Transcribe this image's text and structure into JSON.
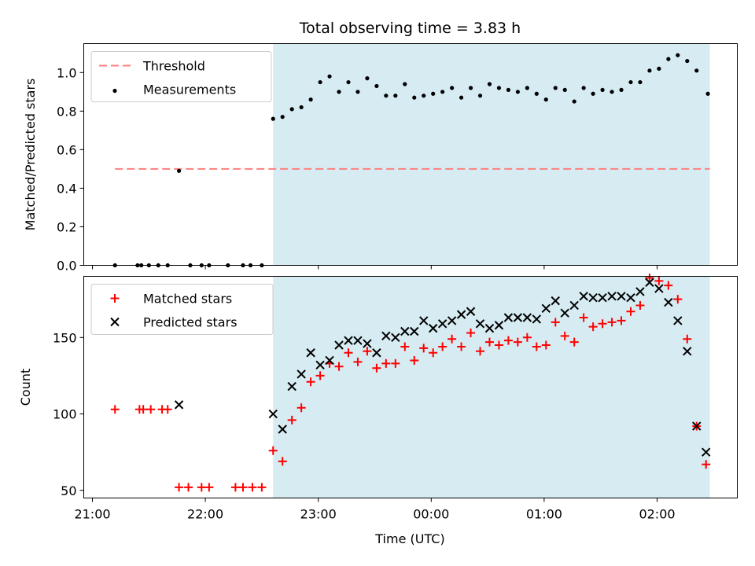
{
  "chart_data": [
    {
      "type": "scatter",
      "title": "Total observing time = 3.83 h",
      "ylabel": "Matched/Predicted stars",
      "ylim": [
        0,
        1.15
      ],
      "yticks": [
        0.0,
        0.2,
        0.4,
        0.6,
        0.8,
        1.0
      ],
      "ytick_labels": [
        "0.0",
        "0.2",
        "0.4",
        "0.6",
        "0.8",
        "1.0"
      ],
      "grid": false,
      "legend": "upper left",
      "shaded_time_range": [
        "22:36",
        "02:28"
      ],
      "shade_color": "#add8e6",
      "threshold": {
        "name": "Threshold",
        "value": 0.5,
        "x_range": [
          "21:12",
          "02:28"
        ],
        "color": "#ff7f7f"
      },
      "series": [
        {
          "name": "Measurements",
          "color": "#000000",
          "points": [
            [
              "21:12",
              0.0
            ],
            [
              "21:24",
              0.0
            ],
            [
              "21:26",
              0.0
            ],
            [
              "21:30",
              0.0
            ],
            [
              "21:35",
              0.0
            ],
            [
              "21:40",
              0.0
            ],
            [
              "21:46",
              0.49
            ],
            [
              "21:52",
              0.0
            ],
            [
              "21:58",
              0.0
            ],
            [
              "22:02",
              0.0
            ],
            [
              "22:12",
              0.0
            ],
            [
              "22:20",
              0.0
            ],
            [
              "22:24",
              0.0
            ],
            [
              "22:30",
              0.0
            ],
            [
              "22:36",
              0.76
            ],
            [
              "22:41",
              0.77
            ],
            [
              "22:46",
              0.81
            ],
            [
              "22:51",
              0.82
            ],
            [
              "22:56",
              0.86
            ],
            [
              "23:01",
              0.95
            ],
            [
              "23:06",
              0.98
            ],
            [
              "23:11",
              0.9
            ],
            [
              "23:16",
              0.95
            ],
            [
              "23:21",
              0.9
            ],
            [
              "23:26",
              0.97
            ],
            [
              "23:31",
              0.93
            ],
            [
              "23:36",
              0.88
            ],
            [
              "23:41",
              0.88
            ],
            [
              "23:46",
              0.94
            ],
            [
              "23:51",
              0.87
            ],
            [
              "23:56",
              0.88
            ],
            [
              "00:01",
              0.89
            ],
            [
              "00:06",
              0.9
            ],
            [
              "00:11",
              0.92
            ],
            [
              "00:16",
              0.87
            ],
            [
              "00:21",
              0.92
            ],
            [
              "00:26",
              0.88
            ],
            [
              "00:31",
              0.94
            ],
            [
              "00:36",
              0.92
            ],
            [
              "00:41",
              0.91
            ],
            [
              "00:46",
              0.9
            ],
            [
              "00:51",
              0.92
            ],
            [
              "00:56",
              0.89
            ],
            [
              "01:01",
              0.86
            ],
            [
              "01:06",
              0.92
            ],
            [
              "01:11",
              0.91
            ],
            [
              "01:16",
              0.85
            ],
            [
              "01:21",
              0.92
            ],
            [
              "01:26",
              0.89
            ],
            [
              "01:31",
              0.91
            ],
            [
              "01:36",
              0.9
            ],
            [
              "01:41",
              0.91
            ],
            [
              "01:46",
              0.95
            ],
            [
              "01:51",
              0.95
            ],
            [
              "01:56",
              1.01
            ],
            [
              "02:01",
              1.02
            ],
            [
              "02:06",
              1.07
            ],
            [
              "02:11",
              1.09
            ],
            [
              "02:16",
              1.06
            ],
            [
              "02:21",
              1.01
            ],
            [
              "02:27",
              0.89
            ]
          ]
        }
      ]
    },
    {
      "type": "scatter",
      "xlabel": "Time (UTC)",
      "ylabel": "Count",
      "ylim": [
        45,
        190
      ],
      "yticks": [
        50,
        100,
        150
      ],
      "ytick_labels": [
        "50",
        "100",
        "150"
      ],
      "xticks": [
        "21:00",
        "22:00",
        "23:00",
        "00:00",
        "01:00",
        "02:00"
      ],
      "xtick_labels": [
        "21:00",
        "22:00",
        "23:00",
        "00:00",
        "01:00",
        "02:00"
      ],
      "grid": false,
      "legend": "upper left",
      "shaded_time_range": [
        "22:36",
        "02:28"
      ],
      "shade_color": "#add8e6",
      "series": [
        {
          "name": "Matched stars",
          "color": "#ff0000",
          "marker": "+",
          "points": [
            [
              "21:12",
              103
            ],
            [
              "21:25",
              103
            ],
            [
              "21:27",
              103
            ],
            [
              "21:31",
              103
            ],
            [
              "21:37",
              103
            ],
            [
              "21:40",
              103
            ],
            [
              "21:46",
              52
            ],
            [
              "21:51",
              52
            ],
            [
              "21:58",
              52
            ],
            [
              "22:02",
              52
            ],
            [
              "22:16",
              52
            ],
            [
              "22:20",
              52
            ],
            [
              "22:25",
              52
            ],
            [
              "22:30",
              52
            ],
            [
              "22:36",
              76
            ],
            [
              "22:41",
              69
            ],
            [
              "22:46",
              96
            ],
            [
              "22:51",
              104
            ],
            [
              "22:56",
              121
            ],
            [
              "23:01",
              125
            ],
            [
              "23:06",
              133
            ],
            [
              "23:11",
              131
            ],
            [
              "23:16",
              140
            ],
            [
              "23:21",
              134
            ],
            [
              "23:26",
              141
            ],
            [
              "23:31",
              130
            ],
            [
              "23:36",
              133
            ],
            [
              "23:41",
              133
            ],
            [
              "23:46",
              144
            ],
            [
              "23:51",
              135
            ],
            [
              "23:56",
              143
            ],
            [
              "00:01",
              140
            ],
            [
              "00:06",
              144
            ],
            [
              "00:11",
              149
            ],
            [
              "00:16",
              144
            ],
            [
              "00:21",
              153
            ],
            [
              "00:26",
              141
            ],
            [
              "00:31",
              147
            ],
            [
              "00:36",
              145
            ],
            [
              "00:41",
              148
            ],
            [
              "00:46",
              147
            ],
            [
              "00:51",
              150
            ],
            [
              "00:56",
              144
            ],
            [
              "01:01",
              145
            ],
            [
              "01:06",
              160
            ],
            [
              "01:11",
              151
            ],
            [
              "01:16",
              147
            ],
            [
              "01:21",
              163
            ],
            [
              "01:26",
              157
            ],
            [
              "01:31",
              159
            ],
            [
              "01:36",
              160
            ],
            [
              "01:41",
              161
            ],
            [
              "01:46",
              167
            ],
            [
              "01:51",
              171
            ],
            [
              "01:56",
              189
            ],
            [
              "02:01",
              187
            ],
            [
              "02:06",
              184
            ],
            [
              "02:11",
              175
            ],
            [
              "02:16",
              149
            ],
            [
              "02:21",
              92
            ],
            [
              "02:26",
              67
            ]
          ]
        },
        {
          "name": "Predicted stars",
          "color": "#000000",
          "marker": "x",
          "points": [
            [
              "21:46",
              106
            ],
            [
              "22:36",
              100
            ],
            [
              "22:41",
              90
            ],
            [
              "22:46",
              118
            ],
            [
              "22:51",
              126
            ],
            [
              "22:56",
              140
            ],
            [
              "23:01",
              132
            ],
            [
              "23:06",
              135
            ],
            [
              "23:11",
              145
            ],
            [
              "23:16",
              148
            ],
            [
              "23:21",
              148
            ],
            [
              "23:26",
              146
            ],
            [
              "23:31",
              140
            ],
            [
              "23:36",
              151
            ],
            [
              "23:41",
              150
            ],
            [
              "23:46",
              154
            ],
            [
              "23:51",
              154
            ],
            [
              "23:56",
              161
            ],
            [
              "00:01",
              156
            ],
            [
              "00:06",
              159
            ],
            [
              "00:11",
              161
            ],
            [
              "00:16",
              165
            ],
            [
              "00:21",
              167
            ],
            [
              "00:26",
              159
            ],
            [
              "00:31",
              156
            ],
            [
              "00:36",
              158
            ],
            [
              "00:41",
              163
            ],
            [
              "00:46",
              163
            ],
            [
              "00:51",
              163
            ],
            [
              "00:56",
              162
            ],
            [
              "01:01",
              169
            ],
            [
              "01:06",
              174
            ],
            [
              "01:11",
              166
            ],
            [
              "01:16",
              171
            ],
            [
              "01:21",
              177
            ],
            [
              "01:26",
              176
            ],
            [
              "01:31",
              176
            ],
            [
              "01:36",
              177
            ],
            [
              "01:41",
              177
            ],
            [
              "01:46",
              176
            ],
            [
              "01:51",
              180
            ],
            [
              "01:56",
              186
            ],
            [
              "02:01",
              182
            ],
            [
              "02:06",
              173
            ],
            [
              "02:11",
              161
            ],
            [
              "02:16",
              141
            ],
            [
              "02:21",
              92
            ],
            [
              "02:26",
              75
            ]
          ]
        }
      ]
    }
  ]
}
